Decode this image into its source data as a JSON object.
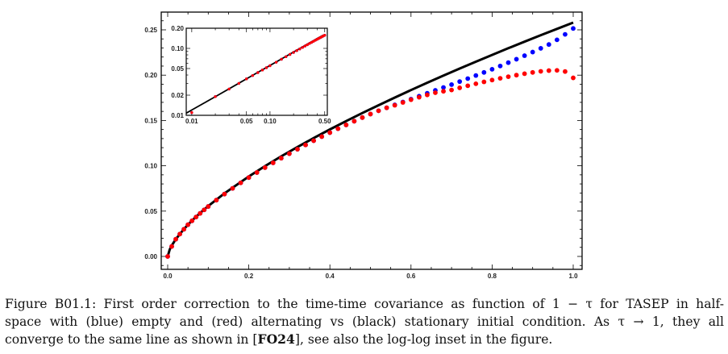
{
  "chart_data": {
    "type": "scatter",
    "xlim": [
      0,
      1
    ],
    "ylim": [
      -0.012,
      0.27
    ],
    "x_ticks": [
      "0.0",
      "0.2",
      "0.4",
      "0.6",
      "0.8",
      "1.0"
    ],
    "y_ticks": [
      "0.00",
      "0.05",
      "0.10",
      "0.15",
      "0.20",
      "0.25"
    ],
    "grid": false,
    "legend": "none",
    "colors": {
      "empty": "#0000ff",
      "alternating": "#ff0000",
      "stationary": "#000000"
    },
    "series": [
      {
        "color": "#000000",
        "style": "line",
        "x": [
          0,
          0.005,
          0.01,
          0.02,
          0.04,
          0.06,
          0.08,
          0.1,
          0.14,
          0.2,
          0.24,
          0.28,
          0.32,
          0.36,
          0.4,
          0.44,
          0.48,
          0.52,
          0.56,
          0.6,
          0.64,
          0.68,
          0.72,
          0.76,
          0.8,
          0.84,
          0.88,
          0.92,
          0.96,
          1.0
        ],
        "y": [
          0,
          0.0076,
          0.012,
          0.019,
          0.0302,
          0.0396,
          0.0479,
          0.0556,
          0.0696,
          0.0882,
          0.0996,
          0.1104,
          0.1207,
          0.1306,
          0.1401,
          0.1493,
          0.1582,
          0.1668,
          0.1753,
          0.1835,
          0.1916,
          0.1995,
          0.2073,
          0.2149,
          0.2223,
          0.2297,
          0.2369,
          0.2441,
          0.2511,
          0.258
        ]
      },
      {
        "color": "#0000ff",
        "style": "points",
        "x": [
          0,
          0.01,
          0.02,
          0.03,
          0.04,
          0.05,
          0.06,
          0.07,
          0.08,
          0.09,
          0.1,
          0.12,
          0.14,
          0.16,
          0.18,
          0.2,
          0.22,
          0.24,
          0.26,
          0.28,
          0.3,
          0.32,
          0.34,
          0.36,
          0.38,
          0.4,
          0.42,
          0.44,
          0.46,
          0.48,
          0.5,
          0.52,
          0.54,
          0.56,
          0.58,
          0.6,
          0.62,
          0.64,
          0.66,
          0.68,
          0.7,
          0.72,
          0.74,
          0.76,
          0.78,
          0.8,
          0.82,
          0.84,
          0.86,
          0.88,
          0.9,
          0.92,
          0.94,
          0.96,
          0.98,
          1.0
        ],
        "y": [
          0,
          0.011,
          0.019,
          0.0247,
          0.03,
          0.035,
          0.0393,
          0.0435,
          0.0475,
          0.0514,
          0.0551,
          0.0621,
          0.0688,
          0.0751,
          0.0812,
          0.087,
          0.0926,
          0.098,
          0.1033,
          0.1084,
          0.1134,
          0.1183,
          0.123,
          0.1277,
          0.1322,
          0.1366,
          0.1409,
          0.1451,
          0.1492,
          0.1532,
          0.1571,
          0.1607,
          0.164,
          0.1672,
          0.1704,
          0.1735,
          0.1768,
          0.18,
          0.1832,
          0.1864,
          0.1896,
          0.1929,
          0.1962,
          0.1996,
          0.203,
          0.2065,
          0.2101,
          0.2138,
          0.2176,
          0.2215,
          0.2255,
          0.2296,
          0.2338,
          0.239,
          0.245,
          0.2515
        ]
      },
      {
        "color": "#ff0000",
        "style": "points",
        "x": [
          0,
          0.01,
          0.02,
          0.03,
          0.04,
          0.05,
          0.06,
          0.07,
          0.08,
          0.09,
          0.1,
          0.12,
          0.14,
          0.16,
          0.18,
          0.2,
          0.22,
          0.24,
          0.26,
          0.28,
          0.3,
          0.32,
          0.34,
          0.36,
          0.38,
          0.4,
          0.42,
          0.44,
          0.46,
          0.48,
          0.5,
          0.52,
          0.54,
          0.56,
          0.58,
          0.6,
          0.62,
          0.64,
          0.66,
          0.68,
          0.7,
          0.72,
          0.74,
          0.76,
          0.78,
          0.8,
          0.82,
          0.84,
          0.86,
          0.88,
          0.9,
          0.92,
          0.94,
          0.96,
          0.98,
          1.0
        ],
        "y": [
          0,
          0.011,
          0.019,
          0.0247,
          0.03,
          0.035,
          0.0393,
          0.0435,
          0.0475,
          0.0514,
          0.0551,
          0.0621,
          0.0688,
          0.0751,
          0.0812,
          0.087,
          0.0926,
          0.098,
          0.1033,
          0.1084,
          0.1134,
          0.1183,
          0.123,
          0.1277,
          0.1322,
          0.1366,
          0.1409,
          0.1451,
          0.1492,
          0.1532,
          0.1571,
          0.1607,
          0.164,
          0.1668,
          0.1699,
          0.1729,
          0.1756,
          0.1782,
          0.1806,
          0.1822,
          0.1836,
          0.186,
          0.1883,
          0.1905,
          0.1926,
          0.1946,
          0.1965,
          0.1983,
          0.2,
          0.2016,
          0.203,
          0.2042,
          0.205,
          0.2053,
          0.204,
          0.197
        ]
      }
    ],
    "inset": {
      "type": "scatter",
      "xscale": "log",
      "yscale": "log",
      "xlim": [
        0.0085,
        0.54
      ],
      "ylim": [
        0.01,
        0.2
      ],
      "x_ticks": [
        "0.01",
        "0.05",
        "0.10",
        "0.50"
      ],
      "x_tick_values": [
        0.01,
        0.05,
        0.1,
        0.5
      ],
      "y_ticks": [
        "0.01",
        "0.02",
        "0.05",
        "0.10",
        "0.20"
      ],
      "y_tick_values": [
        0.01,
        0.02,
        0.05,
        0.1,
        0.2
      ],
      "xmax_shown": 0.5
    }
  },
  "caption": {
    "line1": "Figure B01.1: First order correction to the time-time covariance as function of 1 − τ for TASEP in half-",
    "line2": "space with (blue) empty and (red) alternating vs (black) stationary initial condition. As τ → 1, they all",
    "line3_pre": "converge to the same line as shown in [",
    "line3_ref": "FO24",
    "line3_post": "], see also the log-log inset in the figure."
  }
}
